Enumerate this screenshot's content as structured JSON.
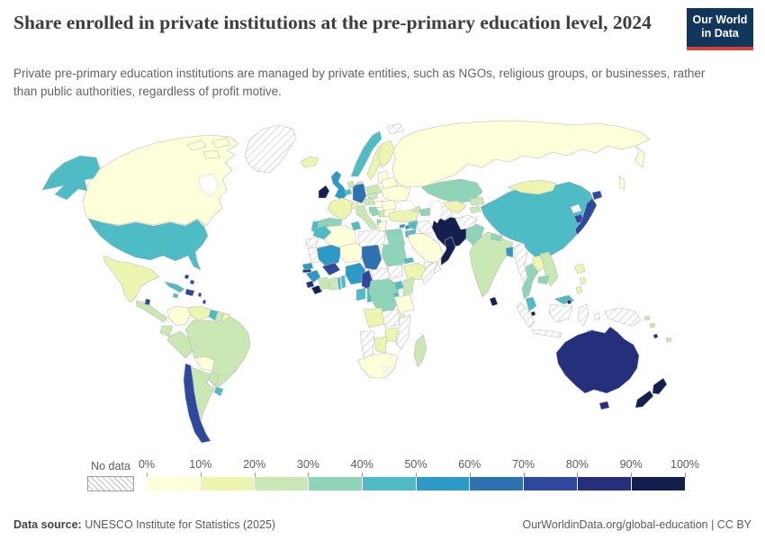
{
  "header": {
    "title": "Share enrolled in private institutions at the pre-primary education level, 2024",
    "subtitle": "Private pre-primary education institutions are managed by private entities, such as NGOs, religious groups, or businesses, rather than public authorities, regardless of profit motive.",
    "logo": {
      "line1": "Our World",
      "line2": "in Data",
      "bg_color": "#12355b",
      "accent_color": "#d7433b"
    }
  },
  "legend": {
    "no_data_label": "No data",
    "tick_labels": [
      "0%",
      "10%",
      "20%",
      "30%",
      "40%",
      "50%",
      "60%",
      "70%",
      "80%",
      "90%",
      "100%"
    ],
    "bin_ranges": [
      "0-10%",
      "10-20%",
      "20-30%",
      "30-40%",
      "40-50%",
      "50-60%",
      "60-70%",
      "70-80%",
      "80-90%",
      "90-100%"
    ],
    "bin_colors": [
      "#ffffd9",
      "#edf5b1",
      "#c9e8b4",
      "#8fd4b9",
      "#4ebcc5",
      "#2b9ac7",
      "#2e72b0",
      "#2e489e",
      "#25307c",
      "#13204e"
    ]
  },
  "footer": {
    "source_label": "Data source:",
    "source_text": " UNESCO Institute for Statistics (2025)",
    "link_text": "OurWorldinData.org/global-education | CC BY"
  },
  "chart_data": {
    "type": "heatmap",
    "subtype": "world-choropleth-map",
    "title": "Share enrolled in private institutions at the pre-primary education level",
    "year": "2024",
    "unit": "share of enrolment in private institutions (%)",
    "bins": [
      "0-10%",
      "10-20%",
      "20-30%",
      "30-40%",
      "40-50%",
      "50-60%",
      "60-70%",
      "70-80%",
      "80-90%",
      "90-100%",
      "No data"
    ],
    "countries": {
      "Canada": "0-10%",
      "United States": "40-50%",
      "Alaska": "40-50%",
      "Greenland": "No data",
      "Mexico": "10-20%",
      "Guatemala": "20-30%",
      "Belize": "70-80%",
      "Cuba": "40-50%",
      "Jamaica": "40-50%",
      "Dominican Republic": "70-80%",
      "Bahamas": "70-80%",
      "Lesser Antilles": "70-80%",
      "Trinidad and Tobago": "90-100%",
      "Colombia": "0-10%",
      "Venezuela": "10-20%",
      "Guyana": "40-50%",
      "Suriname": "20-30%",
      "French Guiana": "10-20%",
      "Ecuador": "20-30%",
      "Peru": "20-30%",
      "Brazil": "20-30%",
      "Bolivia": "0-10%",
      "Paraguay": "20-30%",
      "Chile": "70-80%",
      "Argentina": "20-30%",
      "Uruguay": "40-50%",
      "Iceland": "10-20%",
      "Ireland": "90-100%",
      "United Kingdom": "50-60%",
      "Norway": "40-50%",
      "Sweden": "10-20%",
      "Finland": "10-20%",
      "Denmark": "20-30%",
      "Germany": "60-70%",
      "Netherlands": "20-30%",
      "Belgium": "40-50%",
      "France": "10-20%",
      "Switzerland": "10-20%",
      "Spain": "30-40%",
      "Portugal": "40-50%",
      "Italy": "20-30%",
      "Austria": "20-30%",
      "Czechia": "20-30%",
      "Poland": "20-30%",
      "Baltic states": "0-10%",
      "Belarus": "0-10%",
      "Ukraine": "0-10%",
      "Hungary": "0-10%",
      "Romania": "0-10%",
      "Bulgaria": "0-10%",
      "Serbia": "20-30%",
      "Croatia": "30-40%",
      "Albania": "30-40%",
      "Greece": "0-10%",
      "Svalbard": "No data",
      "Russia": "0-10%",
      "Georgia": "20-30%",
      "Azerbaijan": "30-40%",
      "Turkey": "10-20%",
      "Cyprus": "50-60%",
      "Syria": "40-50%",
      "Lebanon": "50-60%",
      "Israel": "40-50%",
      "Jordan": "40-50%",
      "Iraq": "No data",
      "Iran": "90-100%",
      "Kuwait": "40-50%",
      "Saudi Arabia": "0-10%",
      "Yemen": "No data",
      "Oman": "90-100%",
      "Kazakhstan": "30-40%",
      "Uzbekistan": "10-20%",
      "Turkmenistan": "No data",
      "Kyrgyzstan": "20-30%",
      "Tajikistan": "20-30%",
      "Afghanistan": "No data",
      "Pakistan": "30-40%",
      "India": "20-30%",
      "Nepal": "30-40%",
      "Bangladesh": "50-60%",
      "Sri Lanka": "90-100%",
      "Myanmar": "No data",
      "Thailand": "30-40%",
      "Laos": "10-20%",
      "Vietnam": "20-30%",
      "Cambodia": "30-40%",
      "Malaysia": "40-50%",
      "Singapore": "90-100%",
      "Brunei": "80-90%",
      "Philippines": "10-20%",
      "Indonesia": "No data",
      "Timor-Leste": "40-50%",
      "China": "40-50%",
      "Mongolia": "10-20%",
      "North Korea": "No data",
      "South Korea": "70-80%",
      "Japan": "70-80%",
      "Morocco": "40-50%",
      "Western Sahara": "No data",
      "Algeria": "0-10%",
      "Tunisia": "40-50%",
      "Libya": "No data",
      "Egypt": "30-40%",
      "Mauritania": "No data",
      "Mali": "50-60%",
      "Niger": "0-10%",
      "Chad": "60-70%",
      "Sudan": "30-40%",
      "Eritrea": "40-50%",
      "Ethiopia": "10-20%",
      "Somalia": "No data",
      "Senegal": "50-60%",
      "Gambia": "80-90%",
      "Guinea": "50-60%",
      "Sierra Leone": "80-90%",
      "Liberia": "90-100%",
      "Cote d'Ivoire": "20-30%",
      "Ghana": "20-30%",
      "Togo": "40-50%",
      "Benin": "40-50%",
      "Burkina Faso": "70-80%",
      "Nigeria": "50-60%",
      "Cameroon": "70-80%",
      "Central African Republic": "No data",
      "South Sudan": "No data",
      "Gabon": "40-50%",
      "Congo": "40-50%",
      "DR Congo": "30-40%",
      "Uganda": "40-50%",
      "Rwanda": "40-50%",
      "Kenya": "20-30%",
      "Tanzania": "0-10%",
      "Angola": "10-20%",
      "Zambia": "No data",
      "Malawi": "10-20%",
      "Mozambique": "No data",
      "Zimbabwe": "10-20%",
      "Botswana": "10-20%",
      "Namibia": "No data",
      "South Africa": "0-10%",
      "Madagascar": "20-30%",
      "Australia": "80-90%",
      "Tasmania": "80-90%",
      "New Zealand": "90-100%",
      "Papua New Guinea": "No data",
      "Solomon Islands": "20-30%",
      "Vanuatu": "80-90%",
      "Fiji": "20-30%"
    }
  }
}
